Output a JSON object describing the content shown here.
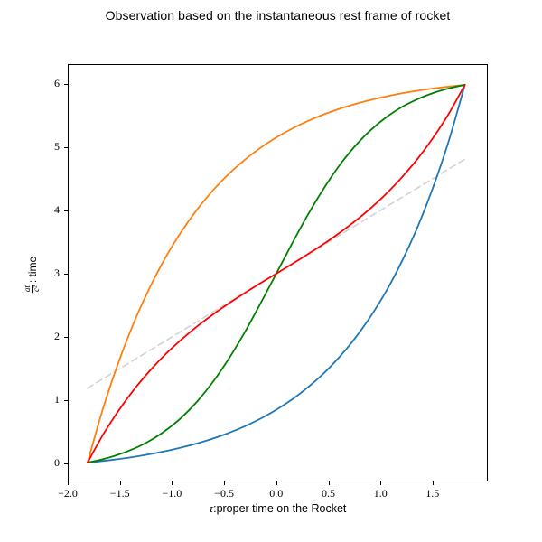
{
  "title": "Observation based on the instantaneous rest frame of rocket",
  "axes": {
    "xlabel": {
      "symbol": "τ",
      "rest": ":proper time on the Rocket"
    },
    "ylabel": {
      "numerator": "at",
      "denominator": "c²",
      "suffix": ": time"
    },
    "spine_color": "#000000",
    "background": "#ffffff"
  },
  "chart_data": {
    "type": "line",
    "title": "Observation based on the instantaneous rest frame of rocket",
    "xlabel": "τ:proper time on the Rocket",
    "ylabel": "at/c² : time",
    "xlim": [
      -2.0,
      2.03
    ],
    "ylim": [
      -0.286,
      6.314
    ],
    "grid": false,
    "legend": "none",
    "x_ticks": [
      {
        "v": -2.0,
        "label": "−2.0"
      },
      {
        "v": -1.5,
        "label": "−1.5"
      },
      {
        "v": -1.0,
        "label": "−1.0"
      },
      {
        "v": -0.5,
        "label": "−0.5"
      },
      {
        "v": 0.0,
        "label": "0.0"
      },
      {
        "v": 0.5,
        "label": "0.5"
      },
      {
        "v": 1.0,
        "label": "1.0"
      },
      {
        "v": 1.5,
        "label": "1.5"
      }
    ],
    "y_ticks": [
      {
        "v": 0,
        "label": "0"
      },
      {
        "v": 1,
        "label": "1"
      },
      {
        "v": 2,
        "label": "2"
      },
      {
        "v": 3,
        "label": "3"
      },
      {
        "v": 4,
        "label": "4"
      },
      {
        "v": 5,
        "label": "5"
      },
      {
        "v": 6,
        "label": "6"
      }
    ],
    "x": [
      -1.818,
      -1.667,
      -1.515,
      -1.364,
      -1.212,
      -1.061,
      -0.909,
      -0.758,
      -0.606,
      -0.455,
      -0.303,
      -0.152,
      0,
      0.152,
      0.303,
      0.455,
      0.606,
      0.758,
      0.909,
      1.061,
      1.212,
      1.364,
      1.515,
      1.667,
      1.818
    ],
    "series": [
      {
        "name": "dashed-gray-line",
        "color": "#d3d3d3",
        "dash": true,
        "width": 1.6,
        "x": [
          -1.818,
          1.818
        ],
        "values": [
          1.182,
          4.818
        ]
      },
      {
        "name": "blue-curve",
        "color": "#1f77b4",
        "dash": false,
        "width": 1.8,
        "values": [
          0,
          0.027,
          0.057,
          0.093,
          0.135,
          0.184,
          0.241,
          0.306,
          0.383,
          0.472,
          0.576,
          0.697,
          0.838,
          1.001,
          1.192,
          1.413,
          1.671,
          1.971,
          2.32,
          2.726,
          3.199,
          3.749,
          4.389,
          5.133,
          6
        ]
      },
      {
        "name": "orange-curve",
        "color": "#ff7f0e",
        "dash": false,
        "width": 1.8,
        "values": [
          0,
          0.867,
          1.612,
          2.251,
          2.801,
          3.274,
          3.68,
          4.029,
          4.329,
          4.587,
          4.808,
          4.999,
          5.162,
          5.303,
          5.424,
          5.528,
          5.617,
          5.694,
          5.759,
          5.816,
          5.865,
          5.907,
          5.943,
          5.973,
          6
        ]
      },
      {
        "name": "green-curve",
        "color": "#008000",
        "dash": false,
        "width": 1.8,
        "values": [
          0,
          0.056,
          0.129,
          0.226,
          0.352,
          0.515,
          0.721,
          0.977,
          1.288,
          1.654,
          2.07,
          2.525,
          3,
          3.475,
          3.93,
          4.346,
          4.712,
          5.023,
          5.279,
          5.485,
          5.648,
          5.774,
          5.871,
          5.944,
          6
        ]
      },
      {
        "name": "red-curve",
        "color": "#ff0000",
        "dash": false,
        "width": 1.8,
        "values": [
          0,
          0.447,
          0.834,
          1.172,
          1.468,
          1.729,
          1.96,
          2.168,
          2.356,
          2.53,
          2.692,
          2.848,
          3,
          3.152,
          3.308,
          3.47,
          3.644,
          3.832,
          4.04,
          4.271,
          4.532,
          4.828,
          5.166,
          5.553,
          6
        ]
      }
    ]
  }
}
